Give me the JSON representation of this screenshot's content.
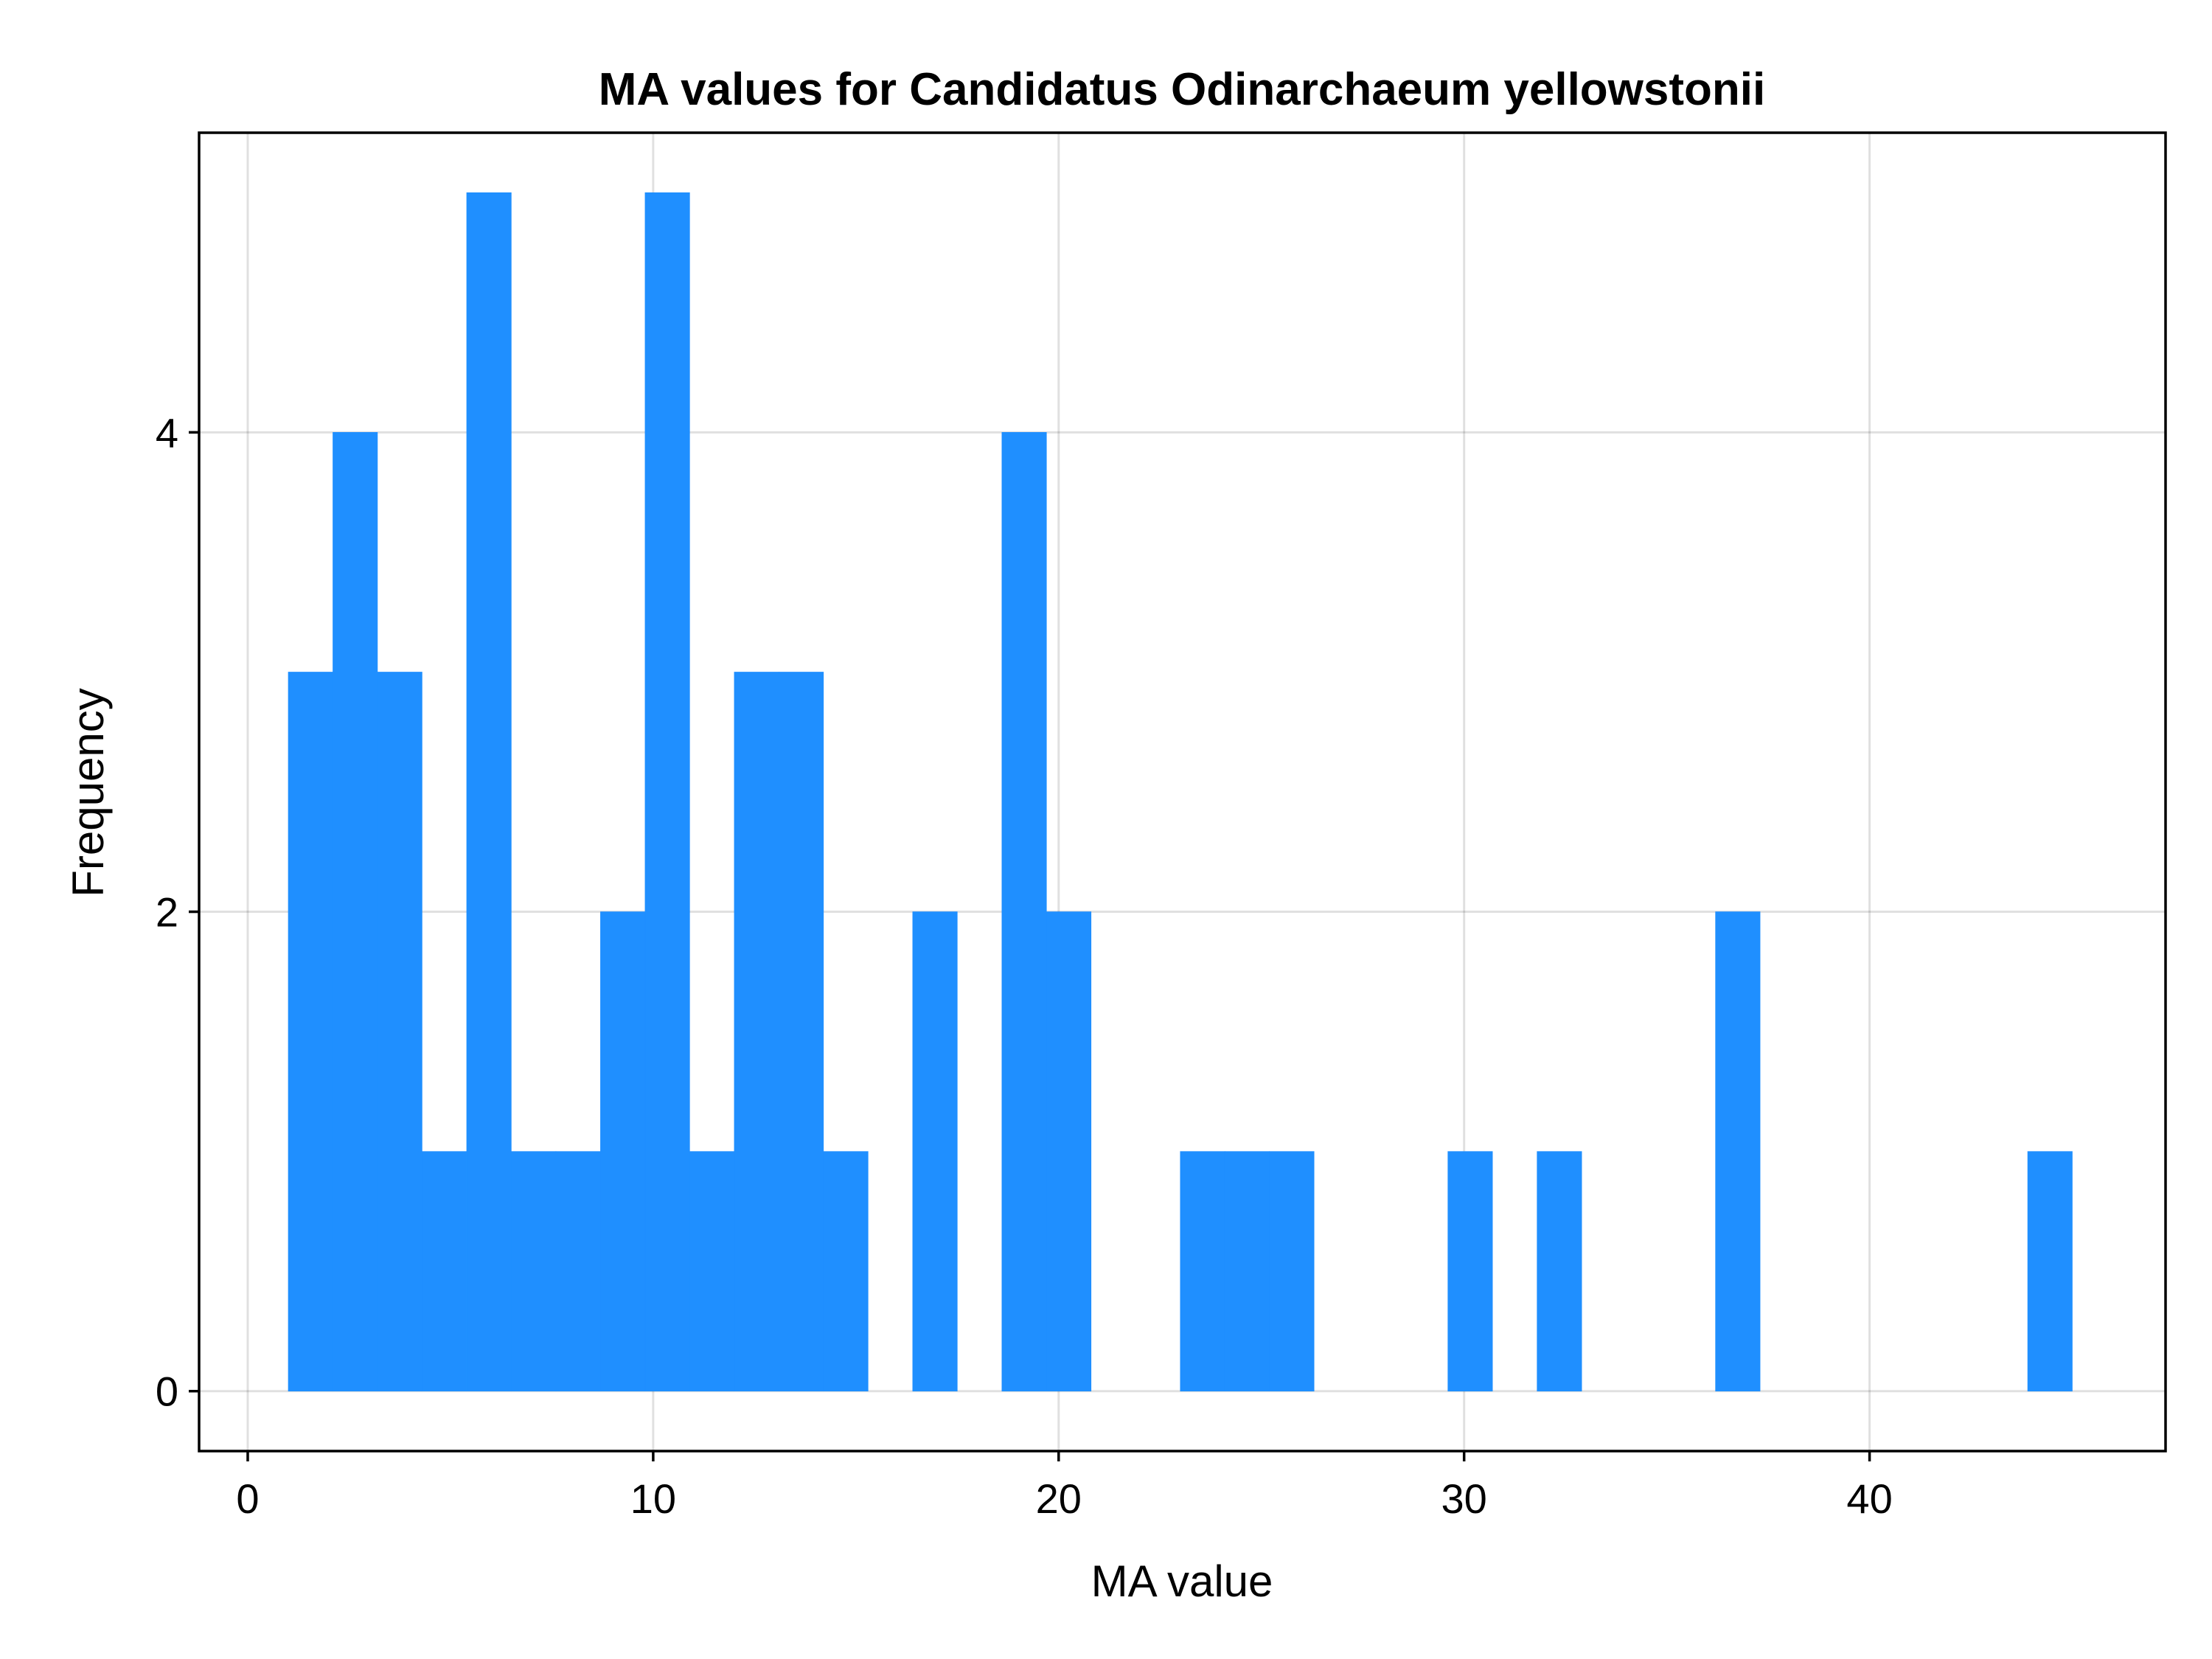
{
  "chart_data": {
    "type": "bar",
    "title": "MA values for Candidatus Odinarchaeum yellowstonii",
    "xlabel": "MA value",
    "ylabel": "Frequency",
    "xlim": [
      -1.2,
      47.3
    ],
    "ylim": [
      -0.25,
      5.25
    ],
    "xticks": [
      0,
      10,
      20,
      30,
      40
    ],
    "xtick_labels": [
      "0",
      "10",
      "20",
      "30",
      "40"
    ],
    "yticks": [
      0,
      2,
      4
    ],
    "ytick_labels": [
      "0",
      "2",
      "4"
    ],
    "grid": true,
    "bar_color": "#1f8fff",
    "bins": [
      {
        "start": 1.0,
        "end": 2.1,
        "count": 3
      },
      {
        "start": 2.1,
        "end": 3.2,
        "count": 4
      },
      {
        "start": 3.2,
        "end": 4.3,
        "count": 3
      },
      {
        "start": 4.3,
        "end": 5.4,
        "count": 1
      },
      {
        "start": 5.4,
        "end": 6.5,
        "count": 5
      },
      {
        "start": 6.5,
        "end": 7.6,
        "count": 1
      },
      {
        "start": 7.6,
        "end": 8.7,
        "count": 1
      },
      {
        "start": 8.7,
        "end": 9.8,
        "count": 2
      },
      {
        "start": 9.8,
        "end": 10.9,
        "count": 5
      },
      {
        "start": 10.9,
        "end": 12.0,
        "count": 1
      },
      {
        "start": 12.0,
        "end": 13.1,
        "count": 3
      },
      {
        "start": 13.1,
        "end": 14.2,
        "count": 3
      },
      {
        "start": 14.2,
        "end": 15.3,
        "count": 1
      },
      {
        "start": 16.4,
        "end": 17.5,
        "count": 2
      },
      {
        "start": 18.6,
        "end": 19.7,
        "count": 4
      },
      {
        "start": 19.7,
        "end": 20.8,
        "count": 2
      },
      {
        "start": 23.0,
        "end": 24.1,
        "count": 1
      },
      {
        "start": 24.1,
        "end": 25.2,
        "count": 1
      },
      {
        "start": 25.2,
        "end": 26.3,
        "count": 1
      },
      {
        "start": 29.6,
        "end": 30.7,
        "count": 1
      },
      {
        "start": 31.8,
        "end": 32.9,
        "count": 1
      },
      {
        "start": 36.2,
        "end": 37.3,
        "count": 2
      },
      {
        "start": 43.9,
        "end": 45.0,
        "count": 1
      }
    ]
  }
}
